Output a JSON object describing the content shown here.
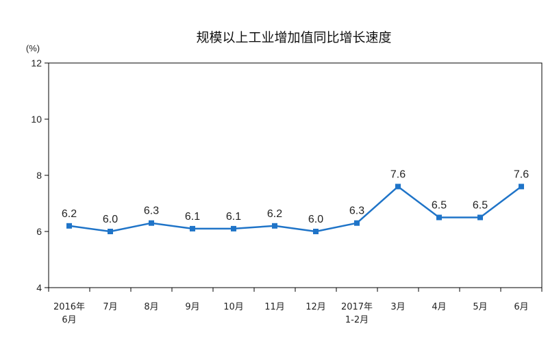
{
  "chart_data": {
    "type": "line",
    "title": "规模以上工业增加值同比增长速度",
    "unit_label": "(%)",
    "categories": [
      [
        "2016年",
        "6月"
      ],
      [
        "7月"
      ],
      [
        "8月"
      ],
      [
        "9月"
      ],
      [
        "10月"
      ],
      [
        "11月"
      ],
      [
        "12月"
      ],
      [
        "2017年",
        "1-2月"
      ],
      [
        "3月"
      ],
      [
        "4月"
      ],
      [
        "5月"
      ],
      [
        "6月"
      ]
    ],
    "series": [
      {
        "values": [
          6.2,
          6.0,
          6.3,
          6.1,
          6.1,
          6.2,
          6.0,
          6.3,
          7.6,
          6.5,
          6.5,
          7.6
        ],
        "labels": [
          "6.2",
          "6.0",
          "6.3",
          "6.1",
          "6.1",
          "6.2",
          "6.0",
          "6.3",
          "7.6",
          "6.5",
          "6.5",
          "7.6"
        ],
        "color": "#1f74c8"
      }
    ],
    "ylim": [
      4,
      12
    ],
    "yticks": [
      4,
      6,
      8,
      10,
      12
    ],
    "grid": false,
    "legend": "none"
  }
}
